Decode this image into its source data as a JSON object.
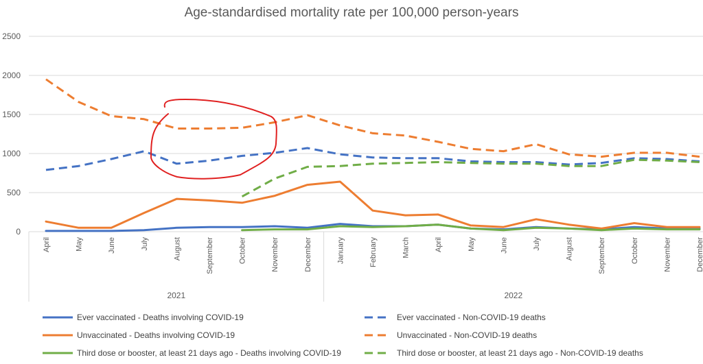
{
  "chart_data": {
    "type": "line",
    "title": "Age-standardised mortality rate per 100,000 person-years",
    "xlabel": "",
    "ylabel": "",
    "ylim": [
      0,
      2500
    ],
    "yticks": [
      0,
      500,
      1000,
      1500,
      2000,
      2500
    ],
    "grid": true,
    "legend_position": "bottom",
    "year_groups": [
      {
        "label": "2021",
        "months": 9
      },
      {
        "label": "2022",
        "months": 12
      }
    ],
    "categories": [
      "April",
      "May",
      "June",
      "July",
      "August",
      "September",
      "October",
      "November",
      "December",
      "January",
      "February",
      "March",
      "April",
      "May",
      "June",
      "July",
      "August",
      "September",
      "October",
      "November",
      "December"
    ],
    "series": [
      {
        "name": "Ever vaccinated -  Deaths involving COVID-19",
        "color": "#4472c4",
        "dashed": false,
        "values": [
          10,
          10,
          10,
          20,
          50,
          60,
          60,
          70,
          50,
          100,
          70,
          70,
          90,
          40,
          30,
          60,
          40,
          30,
          60,
          40,
          40
        ]
      },
      {
        "name": "Unvaccinated -  Deaths involving COVID-19",
        "color": "#ed7d31",
        "dashed": false,
        "values": [
          130,
          50,
          50,
          240,
          420,
          400,
          370,
          460,
          600,
          640,
          270,
          210,
          220,
          80,
          60,
          160,
          90,
          40,
          110,
          60,
          60
        ]
      },
      {
        "name": "Third dose or booster, at least 21 days ago - Deaths involving COVID-19",
        "color": "#70ad47",
        "dashed": false,
        "values": [
          null,
          null,
          null,
          null,
          null,
          null,
          20,
          30,
          30,
          70,
          60,
          70,
          90,
          40,
          20,
          50,
          40,
          20,
          40,
          30,
          30
        ]
      },
      {
        "name": "Ever vaccinated -  Non-COVID-19 deaths",
        "color": "#4472c4",
        "dashed": true,
        "values": [
          790,
          840,
          930,
          1030,
          870,
          910,
          970,
          1010,
          1070,
          990,
          950,
          940,
          940,
          900,
          890,
          890,
          860,
          880,
          940,
          930,
          900
        ]
      },
      {
        "name": "Unvaccinated -  Non-COVID-19 deaths",
        "color": "#ed7d31",
        "dashed": true,
        "values": [
          1950,
          1660,
          1480,
          1440,
          1320,
          1320,
          1330,
          1400,
          1490,
          1360,
          1260,
          1230,
          1150,
          1060,
          1030,
          1120,
          990,
          960,
          1010,
          1010,
          960
        ]
      },
      {
        "name": "Third dose or booster, at least 21 days ago - Non-COVID-19 deaths",
        "color": "#70ad47",
        "dashed": true,
        "values": [
          null,
          null,
          null,
          null,
          null,
          null,
          450,
          680,
          830,
          840,
          870,
          880,
          890,
          880,
          870,
          870,
          840,
          840,
          920,
          910,
          890
        ]
      }
    ],
    "annotations": [
      {
        "type": "hand-drawn-circle",
        "color": "#e02020",
        "around_categories": [
          "August",
          "November"
        ],
        "year": "2021"
      }
    ]
  }
}
